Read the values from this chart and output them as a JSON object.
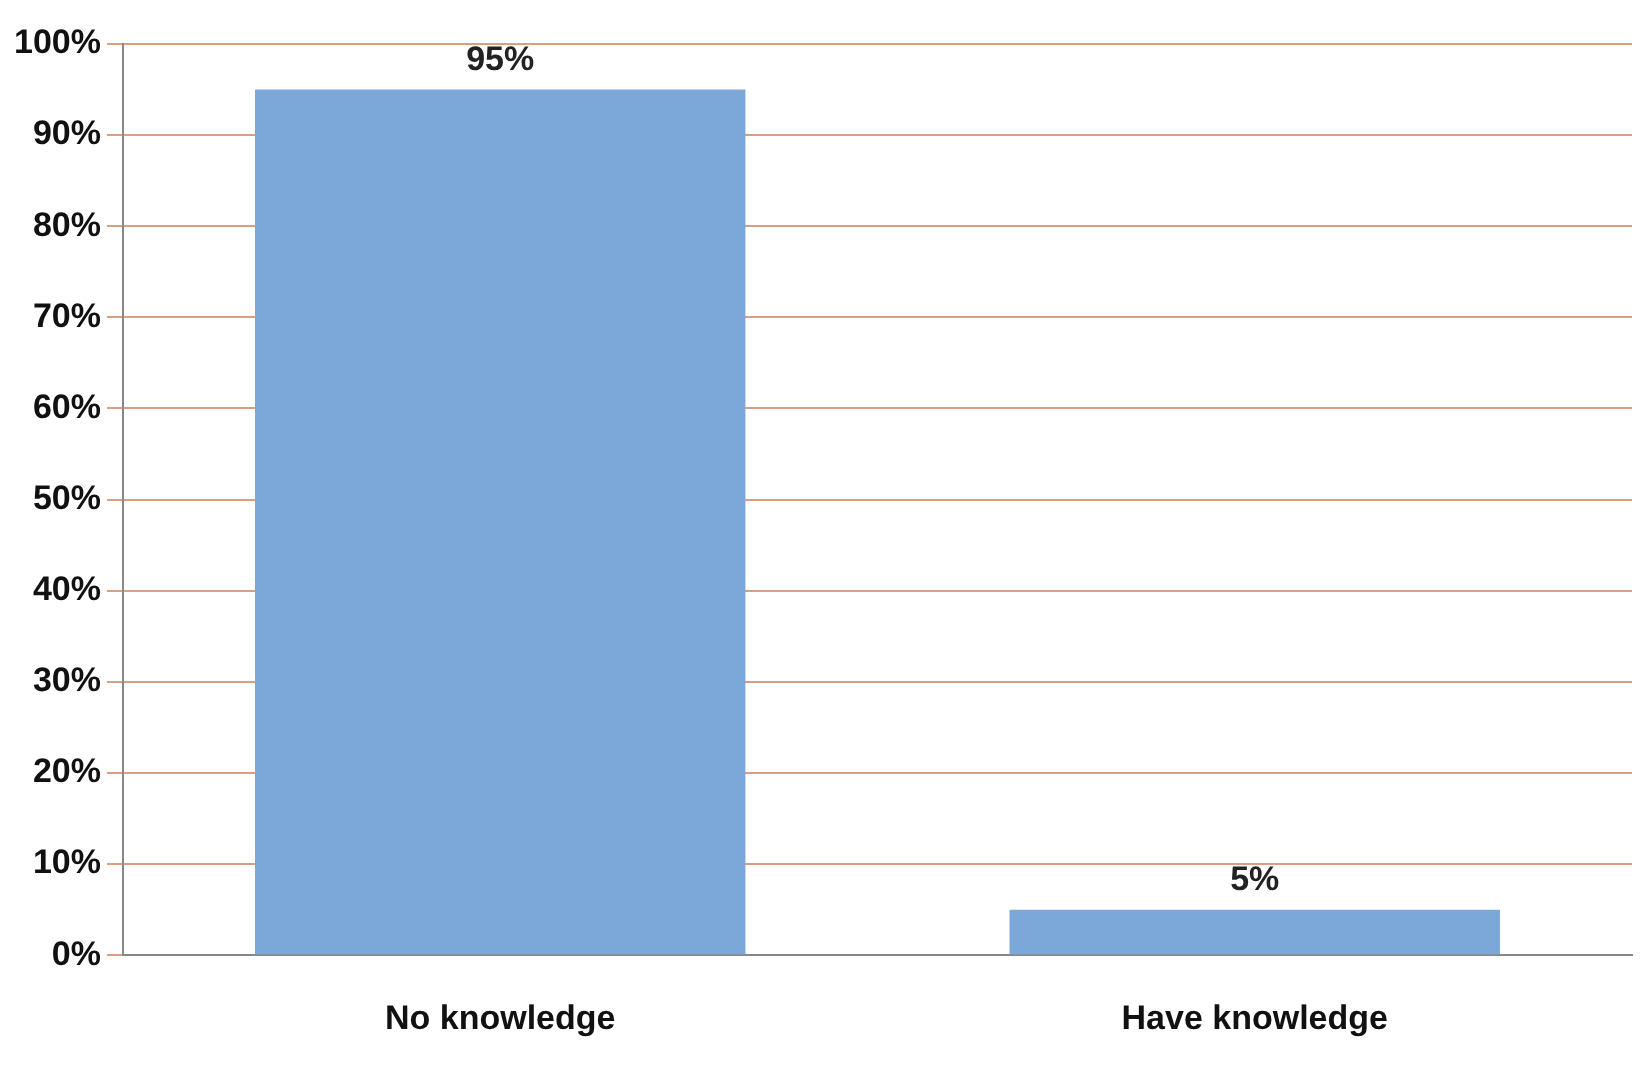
{
  "chart_data": {
    "type": "bar",
    "categories": [
      "No knowledge",
      "Have knowledge"
    ],
    "values": [
      95,
      5
    ],
    "color": "#7ba7d9",
    "value_labels": [
      "95%",
      "5%"
    ],
    "ylim": [
      0,
      100
    ],
    "yticks": [
      {
        "value": 0,
        "label": "0%"
      },
      {
        "value": 10,
        "label": "10%"
      },
      {
        "value": 20,
        "label": "20%"
      },
      {
        "value": 30,
        "label": "30%"
      },
      {
        "value": 40,
        "label": "40%"
      },
      {
        "value": 50,
        "label": "50%"
      },
      {
        "value": 60,
        "label": "60%"
      },
      {
        "value": 70,
        "label": "70%"
      },
      {
        "value": 80,
        "label": "80%"
      },
      {
        "value": 90,
        "label": "90%"
      },
      {
        "value": 100,
        "label": "100%"
      }
    ],
    "grid": "y"
  }
}
